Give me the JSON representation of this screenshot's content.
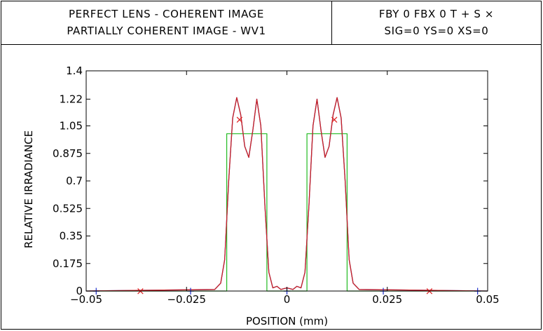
{
  "header": {
    "left_lines": [
      "PERFECT LENS - COHERENT IMAGE",
      "PARTIALLY COHERENT IMAGE - WV1"
    ],
    "right_lines": [
      "FBY 0 FBX 0 T + S ×",
      "SIG=0 YS=0 XS=0"
    ]
  },
  "chart_data": {
    "type": "line",
    "title": "",
    "xlabel": "POSITION (mm)",
    "ylabel": "RELATIVE IRRADIANCE",
    "xlim": [
      -0.05,
      0.05
    ],
    "ylim": [
      0,
      1.4
    ],
    "x_ticks": [
      -0.05,
      -0.025,
      0,
      0.025,
      0.05
    ],
    "x_tick_labels": [
      "−0.05",
      "−0.025",
      "0",
      "0.025",
      "0.05"
    ],
    "y_ticks": [
      0,
      0.175,
      0.35,
      0.525,
      0.7,
      0.875,
      1.05,
      1.22,
      1.4
    ],
    "y_tick_labels": [
      "0",
      "0.175",
      "0.35",
      "0.525",
      "0.7",
      "0.875",
      "1.05",
      "1.22",
      "1.4"
    ],
    "grid": false,
    "series": [
      {
        "color": "#22bb22",
        "x": [
          -0.05,
          -0.015,
          -0.015,
          -0.005,
          -0.005,
          0.005,
          0.005,
          0.015,
          0.015,
          0.05
        ],
        "y": [
          0,
          0,
          1,
          1,
          0,
          0,
          1,
          1,
          0,
          0
        ]
      },
      {
        "color": "#2233cc",
        "x": [
          -0.05,
          -0.018,
          -0.0165,
          -0.0155,
          -0.0145,
          -0.0135,
          -0.0125,
          -0.0115,
          -0.0105,
          -0.0095,
          -0.0085,
          -0.0075,
          -0.0065,
          -0.0055,
          -0.0045,
          -0.0035,
          -0.0025,
          -0.0015,
          0,
          0.0015,
          0.0025,
          0.0035,
          0.0045,
          0.0055,
          0.0065,
          0.0075,
          0.0085,
          0.0095,
          0.0105,
          0.0115,
          0.0125,
          0.0135,
          0.0145,
          0.0155,
          0.0165,
          0.018,
          0.05
        ],
        "y": [
          0,
          0.01,
          0.05,
          0.2,
          0.7,
          1.1,
          1.23,
          1.12,
          0.92,
          0.85,
          1.02,
          1.22,
          1.05,
          0.55,
          0.12,
          0.02,
          0.03,
          0.01,
          0.02,
          0.01,
          0.03,
          0.02,
          0.12,
          0.55,
          1.05,
          1.22,
          1.02,
          0.85,
          0.92,
          1.12,
          1.23,
          1.1,
          0.7,
          0.2,
          0.05,
          0.01,
          0
        ]
      },
      {
        "color": "#cc2222",
        "x": [
          -0.05,
          -0.018,
          -0.0165,
          -0.0155,
          -0.0145,
          -0.0135,
          -0.0125,
          -0.0115,
          -0.0105,
          -0.0095,
          -0.0085,
          -0.0075,
          -0.0065,
          -0.0055,
          -0.0045,
          -0.0035,
          -0.0025,
          -0.0015,
          0,
          0.0015,
          0.0025,
          0.0035,
          0.0045,
          0.0055,
          0.0065,
          0.0075,
          0.0085,
          0.0095,
          0.0105,
          0.0115,
          0.0125,
          0.0135,
          0.0145,
          0.0155,
          0.0165,
          0.018,
          0.05
        ],
        "y": [
          0,
          0.01,
          0.05,
          0.2,
          0.7,
          1.1,
          1.23,
          1.12,
          0.92,
          0.85,
          1.02,
          1.22,
          1.05,
          0.55,
          0.12,
          0.02,
          0.03,
          0.01,
          0.02,
          0.01,
          0.03,
          0.02,
          0.12,
          0.55,
          1.05,
          1.22,
          1.02,
          0.85,
          0.92,
          1.12,
          1.23,
          1.1,
          0.7,
          0.2,
          0.05,
          0.01,
          0
        ]
      }
    ],
    "markers": [
      {
        "symbol": "×",
        "color": "#dd2222",
        "x": -0.0365,
        "y": 0
      },
      {
        "symbol": "×",
        "color": "#dd2222",
        "x": -0.0118,
        "y": 1.09
      },
      {
        "symbol": "×",
        "color": "#dd2222",
        "x": 0.0118,
        "y": 1.09
      },
      {
        "symbol": "×",
        "color": "#dd2222",
        "x": 0.0355,
        "y": 0
      },
      {
        "symbol": "+",
        "color": "#2233cc",
        "x": -0.0475,
        "y": 0
      },
      {
        "symbol": "+",
        "color": "#2233cc",
        "x": -0.024,
        "y": 0
      },
      {
        "symbol": "+",
        "color": "#2233cc",
        "x": 0,
        "y": 0
      },
      {
        "symbol": "+",
        "color": "#2233cc",
        "x": 0.024,
        "y": 0
      },
      {
        "symbol": "+",
        "color": "#2233cc",
        "x": 0.0475,
        "y": 0
      }
    ]
  }
}
